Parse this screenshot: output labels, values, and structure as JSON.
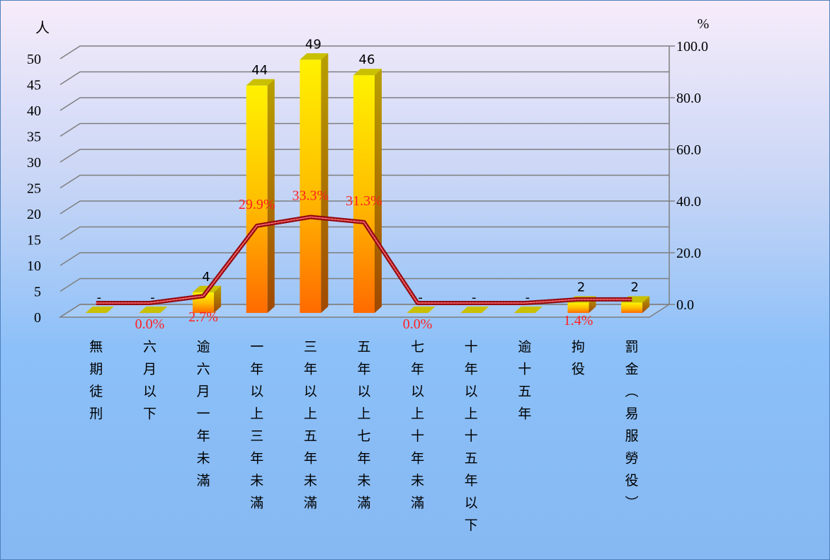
{
  "chart_data": {
    "type": "bar",
    "title": "",
    "left_axis": {
      "unit": "人",
      "ylim": [
        0,
        50
      ],
      "ticks": [
        "0",
        "5",
        "10",
        "15",
        "20",
        "25",
        "30",
        "35",
        "40",
        "45",
        "50"
      ]
    },
    "right_axis": {
      "unit": "%",
      "ylim": [
        0,
        100
      ],
      "ticks": [
        "0.0",
        "20.0",
        "40.0",
        "60.0",
        "80.0",
        "100.0"
      ]
    },
    "grid": true,
    "legend": "none",
    "categories": [
      "無期徒刑",
      "六月以下",
      "逾六月一年未滿",
      "一年以上三年未滿",
      "三年以上五年未滿",
      "五年以上七年未滿",
      "七年以上十年未滿",
      "十年以上十五年以下",
      "逾十五年",
      "拘役",
      "罰金︵易服勞役︶"
    ],
    "series": [
      {
        "type": "bar",
        "axis": "left",
        "values": [
          0,
          0,
          4,
          44,
          49,
          46,
          0,
          0,
          0,
          2,
          2
        ],
        "labels": [
          "-",
          "-",
          "4",
          "44",
          "49",
          "46",
          "-",
          "-",
          "-",
          "2",
          "2"
        ],
        "color": "#ffb000"
      },
      {
        "type": "line",
        "axis": "right",
        "values": [
          0,
          0,
          2.7,
          29.9,
          33.3,
          31.3,
          0,
          0,
          0,
          1.4,
          1.4
        ],
        "labels": [
          "",
          "0.0%",
          "2.7%",
          "29.9%",
          "33.3%",
          "31.3%",
          "0.0%",
          "",
          "",
          "1.4%",
          ""
        ],
        "color": "#c0141c"
      }
    ]
  }
}
